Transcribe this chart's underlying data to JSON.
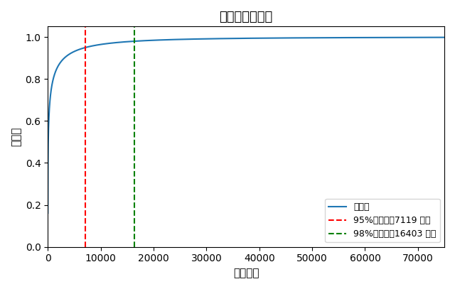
{
  "title": "词汇覆盖率分析",
  "xlabel": "词汇数量",
  "ylabel": "覆盖率",
  "total_vocab": 75000,
  "vline_95_x": 7119,
  "vline_98_x": 16403,
  "vline_95_label": "95%覆盖率（7119 词）",
  "vline_98_label": "98%覆盖率（16403 词）",
  "coverage_label": "覆盖率",
  "line_color": "#1f77b4",
  "vline_95_color": "red",
  "vline_98_color": "green",
  "xlim": [
    0,
    75000
  ],
  "ylim": [
    0.0,
    1.05
  ],
  "xticks": [
    0,
    10000,
    20000,
    30000,
    40000,
    50000,
    60000,
    70000
  ],
  "yticks": [
    0.0,
    0.2,
    0.4,
    0.6,
    0.8,
    1.0
  ],
  "curve_c": 0.008,
  "curve_d": 0.3195
}
